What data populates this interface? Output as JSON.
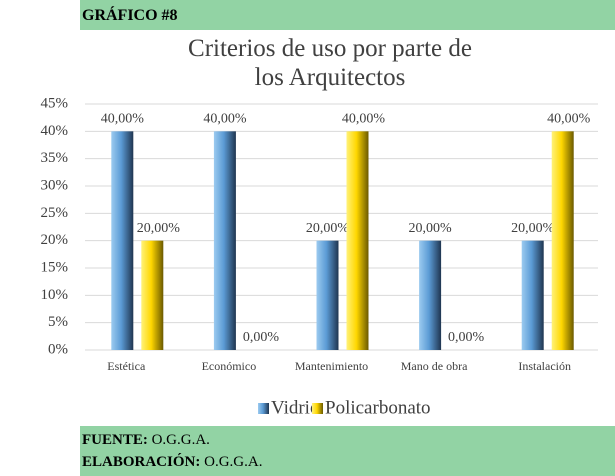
{
  "header": {
    "label": "GRÁFICO #8"
  },
  "chart_data": {
    "type": "bar",
    "title": "Criterios de uso por parte de los Arquitectos",
    "categories": [
      "Estética",
      "Económico",
      "Mantenimiento",
      "Mano de obra",
      "Instalación"
    ],
    "series": [
      {
        "name": "Vidrio",
        "color": "#5b9bd5",
        "values": [
          40,
          40,
          20,
          20,
          20
        ],
        "value_labels": [
          "40,00%",
          "40,00%",
          "20,00%",
          "20,00%",
          "20,00%"
        ]
      },
      {
        "name": "Policarbonato",
        "color": "#ffd700",
        "values": [
          20,
          0,
          40,
          0,
          40
        ],
        "value_labels": [
          "20,00%",
          "0,00%",
          "40,00%",
          "0,00%",
          "40,00%"
        ]
      }
    ],
    "ylim": [
      0,
      45
    ],
    "yticks": [
      {
        "value": 0,
        "label": "0%"
      },
      {
        "value": 5,
        "label": "5%"
      },
      {
        "value": 10,
        "label": "10%"
      },
      {
        "value": 15,
        "label": "15%"
      },
      {
        "value": 20,
        "label": "20%"
      },
      {
        "value": 25,
        "label": "25%"
      },
      {
        "value": 30,
        "label": "30%"
      },
      {
        "value": 35,
        "label": "35%"
      },
      {
        "value": 40,
        "label": "40%"
      },
      {
        "value": 45,
        "label": "45%"
      }
    ],
    "grid": true,
    "legend": "bottom"
  },
  "footer": {
    "source_label": "FUENTE:",
    "source": "O.G.G.A.",
    "made_label": "ELABORACIÓN:",
    "made": "O.G.G.A."
  }
}
